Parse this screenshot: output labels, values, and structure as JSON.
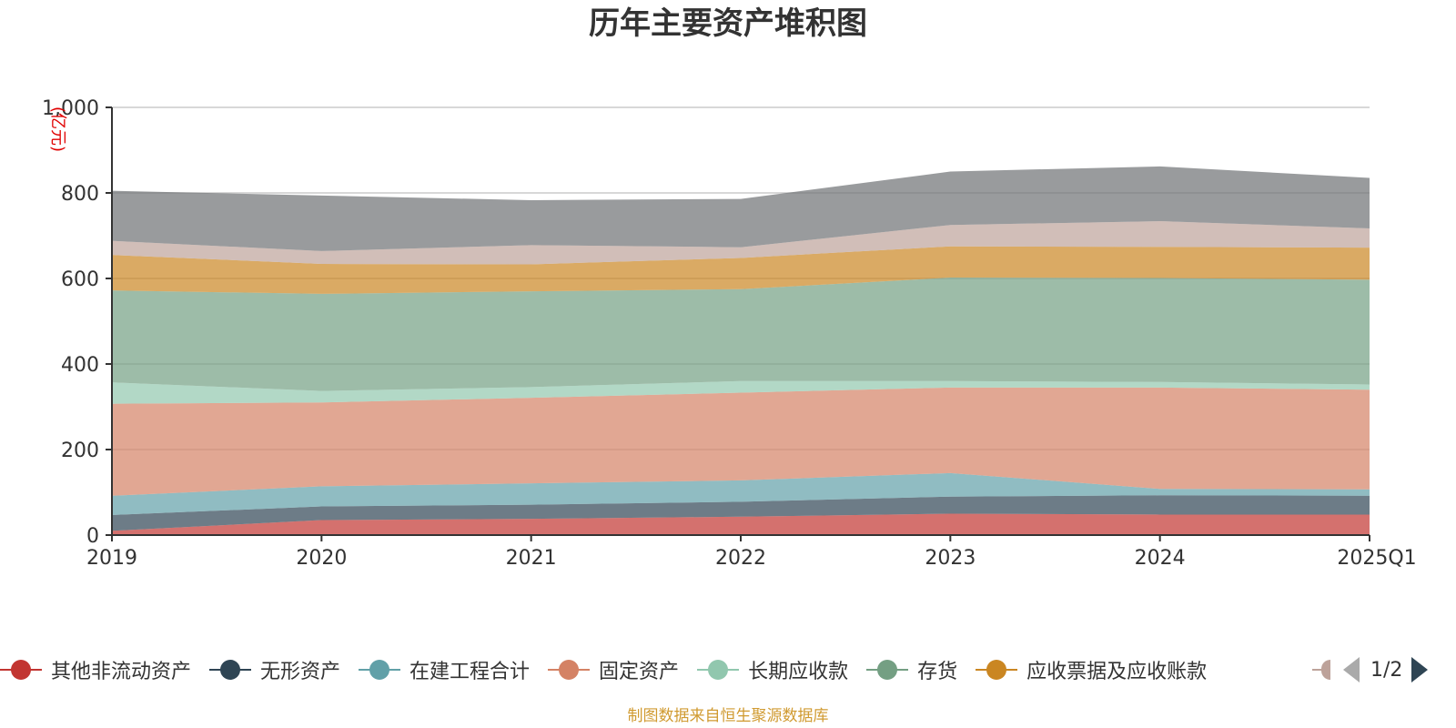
{
  "chart_data": {
    "type": "area",
    "stacked": true,
    "title": "历年主要资产堆积图",
    "unit": "(亿元)",
    "categories": [
      "2019",
      "2020",
      "2021",
      "2022",
      "2023",
      "2024",
      "2025Q1"
    ],
    "ylim": [
      0,
      1000
    ],
    "yticks": [
      0,
      200,
      400,
      600,
      800,
      1000
    ],
    "ytick_labels": [
      "0",
      "200",
      "400",
      "600",
      "800",
      "1,000"
    ],
    "grid": true,
    "legend_position": "bottom",
    "series": [
      {
        "name": "其他非流动资产",
        "color": "#c23531",
        "values": [
          10,
          35,
          38,
          43,
          50,
          48,
          48
        ]
      },
      {
        "name": "无形资产",
        "color": "#2f4554",
        "values": [
          37,
          32,
          33,
          35,
          40,
          45,
          44
        ]
      },
      {
        "name": "在建工程合计",
        "color": "#61a0a8",
        "values": [
          45,
          47,
          50,
          50,
          55,
          15,
          15
        ]
      },
      {
        "name": "固定资产",
        "color": "#d48265",
        "values": [
          215,
          196,
          200,
          205,
          200,
          237,
          233
        ]
      },
      {
        "name": "长期应收款",
        "color": "#91c7ae",
        "values": [
          50,
          27,
          25,
          27,
          15,
          13,
          12
        ]
      },
      {
        "name": "存货",
        "color": "#749f83",
        "values": [
          215,
          227,
          224,
          215,
          242,
          243,
          245
        ]
      },
      {
        "name": "应收票据及应收账款",
        "color": "#ca8622",
        "values": [
          83,
          70,
          63,
          73,
          73,
          73,
          75
        ]
      },
      {
        "name": "",
        "color": "#bda29a",
        "values": [
          33,
          30,
          45,
          25,
          50,
          60,
          45
        ]
      },
      {
        "name": "",
        "color": "#6e7074",
        "values": [
          117,
          130,
          105,
          113,
          125,
          128,
          118
        ]
      }
    ]
  },
  "legend": {
    "visible_count": 7,
    "page_indicator": "1/2"
  },
  "source_note": "制图数据来自恒生聚源数据库"
}
